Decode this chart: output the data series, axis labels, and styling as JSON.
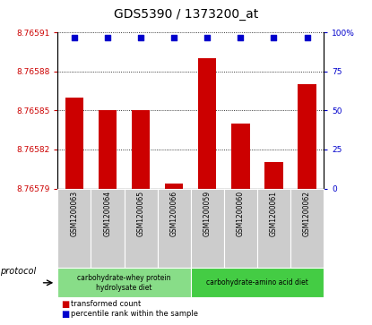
{
  "title": "GDS5390 / 1373200_at",
  "samples": [
    "GSM1200063",
    "GSM1200064",
    "GSM1200065",
    "GSM1200066",
    "GSM1200059",
    "GSM1200060",
    "GSM1200061",
    "GSM1200062"
  ],
  "bar_values": [
    8.76586,
    8.76585,
    8.76585,
    8.765794,
    8.76589,
    8.76584,
    8.76581,
    8.76587
  ],
  "percentile_values": [
    97,
    97,
    97,
    97,
    97,
    97,
    97,
    97
  ],
  "ylim_left": [
    8.76579,
    8.76591
  ],
  "ylim_right": [
    0,
    100
  ],
  "yticks_left": [
    8.76579,
    8.76582,
    8.76585,
    8.76588,
    8.76591
  ],
  "yticks_right": [
    0,
    25,
    50,
    75,
    100
  ],
  "bar_color": "#cc0000",
  "dot_color": "#0000cc",
  "baseline": 8.76579,
  "protocol_groups": [
    {
      "label": "carbohydrate-whey protein\nhydrolysate diet",
      "start": 0,
      "end": 4,
      "color": "#88dd88"
    },
    {
      "label": "carbohydrate-amino acid diet",
      "start": 4,
      "end": 8,
      "color": "#44cc44"
    }
  ],
  "legend_bar_label": "transformed count",
  "legend_dot_label": "percentile rank within the sample",
  "protocol_label": "protocol",
  "title_fontsize": 10,
  "axis_label_color_left": "#cc0000",
  "axis_label_color_right": "#0000cc",
  "tick_bg_color": "#cccccc",
  "plot_bg_color": "#ffffff"
}
